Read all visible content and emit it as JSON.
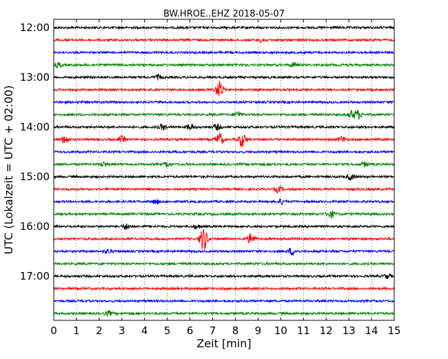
{
  "chart_data": {
    "type": "line",
    "title": "BW.HROE..EHZ 2018-05-07",
    "xlabel": "Zeit  [min]",
    "ylabel": "UTC (Lokalzeit = UTC + 02:00)",
    "xlim": [
      0,
      15
    ],
    "x_ticks": [
      "0",
      "1",
      "2",
      "3",
      "4",
      "5",
      "6",
      "7",
      "8",
      "9",
      "10",
      "11",
      "12",
      "13",
      "14",
      "15"
    ],
    "y_tick_labels": [
      "12:00",
      "13:00",
      "14:00",
      "15:00",
      "16:00",
      "17:00"
    ],
    "grid": "vertical dotted",
    "trace_interval_minutes": 15,
    "trace_count": 24,
    "trace_colors": [
      "#000000",
      "#ff0000",
      "#0000ff",
      "#008000"
    ],
    "series": [
      {
        "start": "12:00",
        "events": []
      },
      {
        "start": "12:15",
        "events": [
          {
            "t": 9.2,
            "amp": 3
          }
        ]
      },
      {
        "start": "12:30",
        "events": []
      },
      {
        "start": "12:45",
        "events": [
          {
            "t": 0.2,
            "amp": 3
          },
          {
            "t": 10.6,
            "amp": 3
          }
        ]
      },
      {
        "start": "13:00",
        "events": [
          {
            "t": 4.6,
            "amp": 3
          }
        ]
      },
      {
        "start": "13:15",
        "events": [
          {
            "t": 7.3,
            "amp": 12
          }
        ]
      },
      {
        "start": "13:30",
        "events": []
      },
      {
        "start": "13:45",
        "events": [
          {
            "t": 8.1,
            "amp": 4
          },
          {
            "t": 13.1,
            "amp": 5
          },
          {
            "t": 13.4,
            "amp": 6
          }
        ]
      },
      {
        "start": "14:00",
        "events": [
          {
            "t": 4.8,
            "amp": 4
          },
          {
            "t": 6.0,
            "amp": 4
          },
          {
            "t": 7.2,
            "amp": 4
          }
        ]
      },
      {
        "start": "14:15",
        "events": [
          {
            "t": 0.5,
            "amp": 6
          },
          {
            "t": 3.0,
            "amp": 4
          },
          {
            "t": 7.3,
            "amp": 9
          },
          {
            "t": 8.3,
            "amp": 10
          },
          {
            "t": 12.7,
            "amp": 4
          }
        ]
      },
      {
        "start": "14:30",
        "events": []
      },
      {
        "start": "14:45",
        "events": [
          {
            "t": 2.2,
            "amp": 3
          },
          {
            "t": 5.0,
            "amp": 3
          },
          {
            "t": 13.7,
            "amp": 3
          }
        ]
      },
      {
        "start": "15:00",
        "events": [
          {
            "t": 13.1,
            "amp": 4
          }
        ]
      },
      {
        "start": "15:15",
        "events": [
          {
            "t": 9.9,
            "amp": 4
          }
        ]
      },
      {
        "start": "15:30",
        "events": [
          {
            "t": 4.5,
            "amp": 3
          },
          {
            "t": 10.0,
            "amp": 3
          }
        ]
      },
      {
        "start": "15:45",
        "events": [
          {
            "t": 12.2,
            "amp": 5
          }
        ]
      },
      {
        "start": "16:00",
        "events": [
          {
            "t": 3.2,
            "amp": 4
          },
          {
            "t": 6.3,
            "amp": 3
          }
        ]
      },
      {
        "start": "16:15",
        "events": [
          {
            "t": 6.6,
            "amp": 17
          },
          {
            "t": 8.7,
            "amp": 8
          }
        ]
      },
      {
        "start": "16:30",
        "events": [
          {
            "t": 2.4,
            "amp": 3
          },
          {
            "t": 10.5,
            "amp": 5
          }
        ]
      },
      {
        "start": "16:45",
        "events": []
      },
      {
        "start": "17:00",
        "events": [
          {
            "t": 14.7,
            "amp": 3
          }
        ]
      },
      {
        "start": "17:15",
        "events": []
      },
      {
        "start": "17:30",
        "events": []
      },
      {
        "start": "17:45",
        "events": [
          {
            "t": 2.4,
            "amp": 3
          }
        ]
      }
    ]
  }
}
